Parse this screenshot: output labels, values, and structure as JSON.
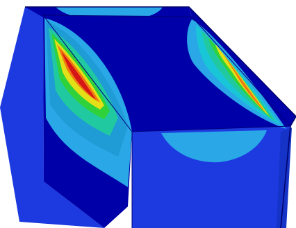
{
  "scene": {
    "subject": "fea-stress-contour-box",
    "colors": {
      "background": "#ffffff",
      "band_deep_blue": "#0000a8",
      "band_blue": "#1c3ae0",
      "band_light_blue": "#2aa7e6",
      "band_cyan": "#19c6d8",
      "band_teal": "#21c9a0",
      "band_green": "#2fd23a",
      "band_yellow": "#e4e018",
      "band_orange": "#f07a12",
      "band_red": "#d51616"
    }
  }
}
